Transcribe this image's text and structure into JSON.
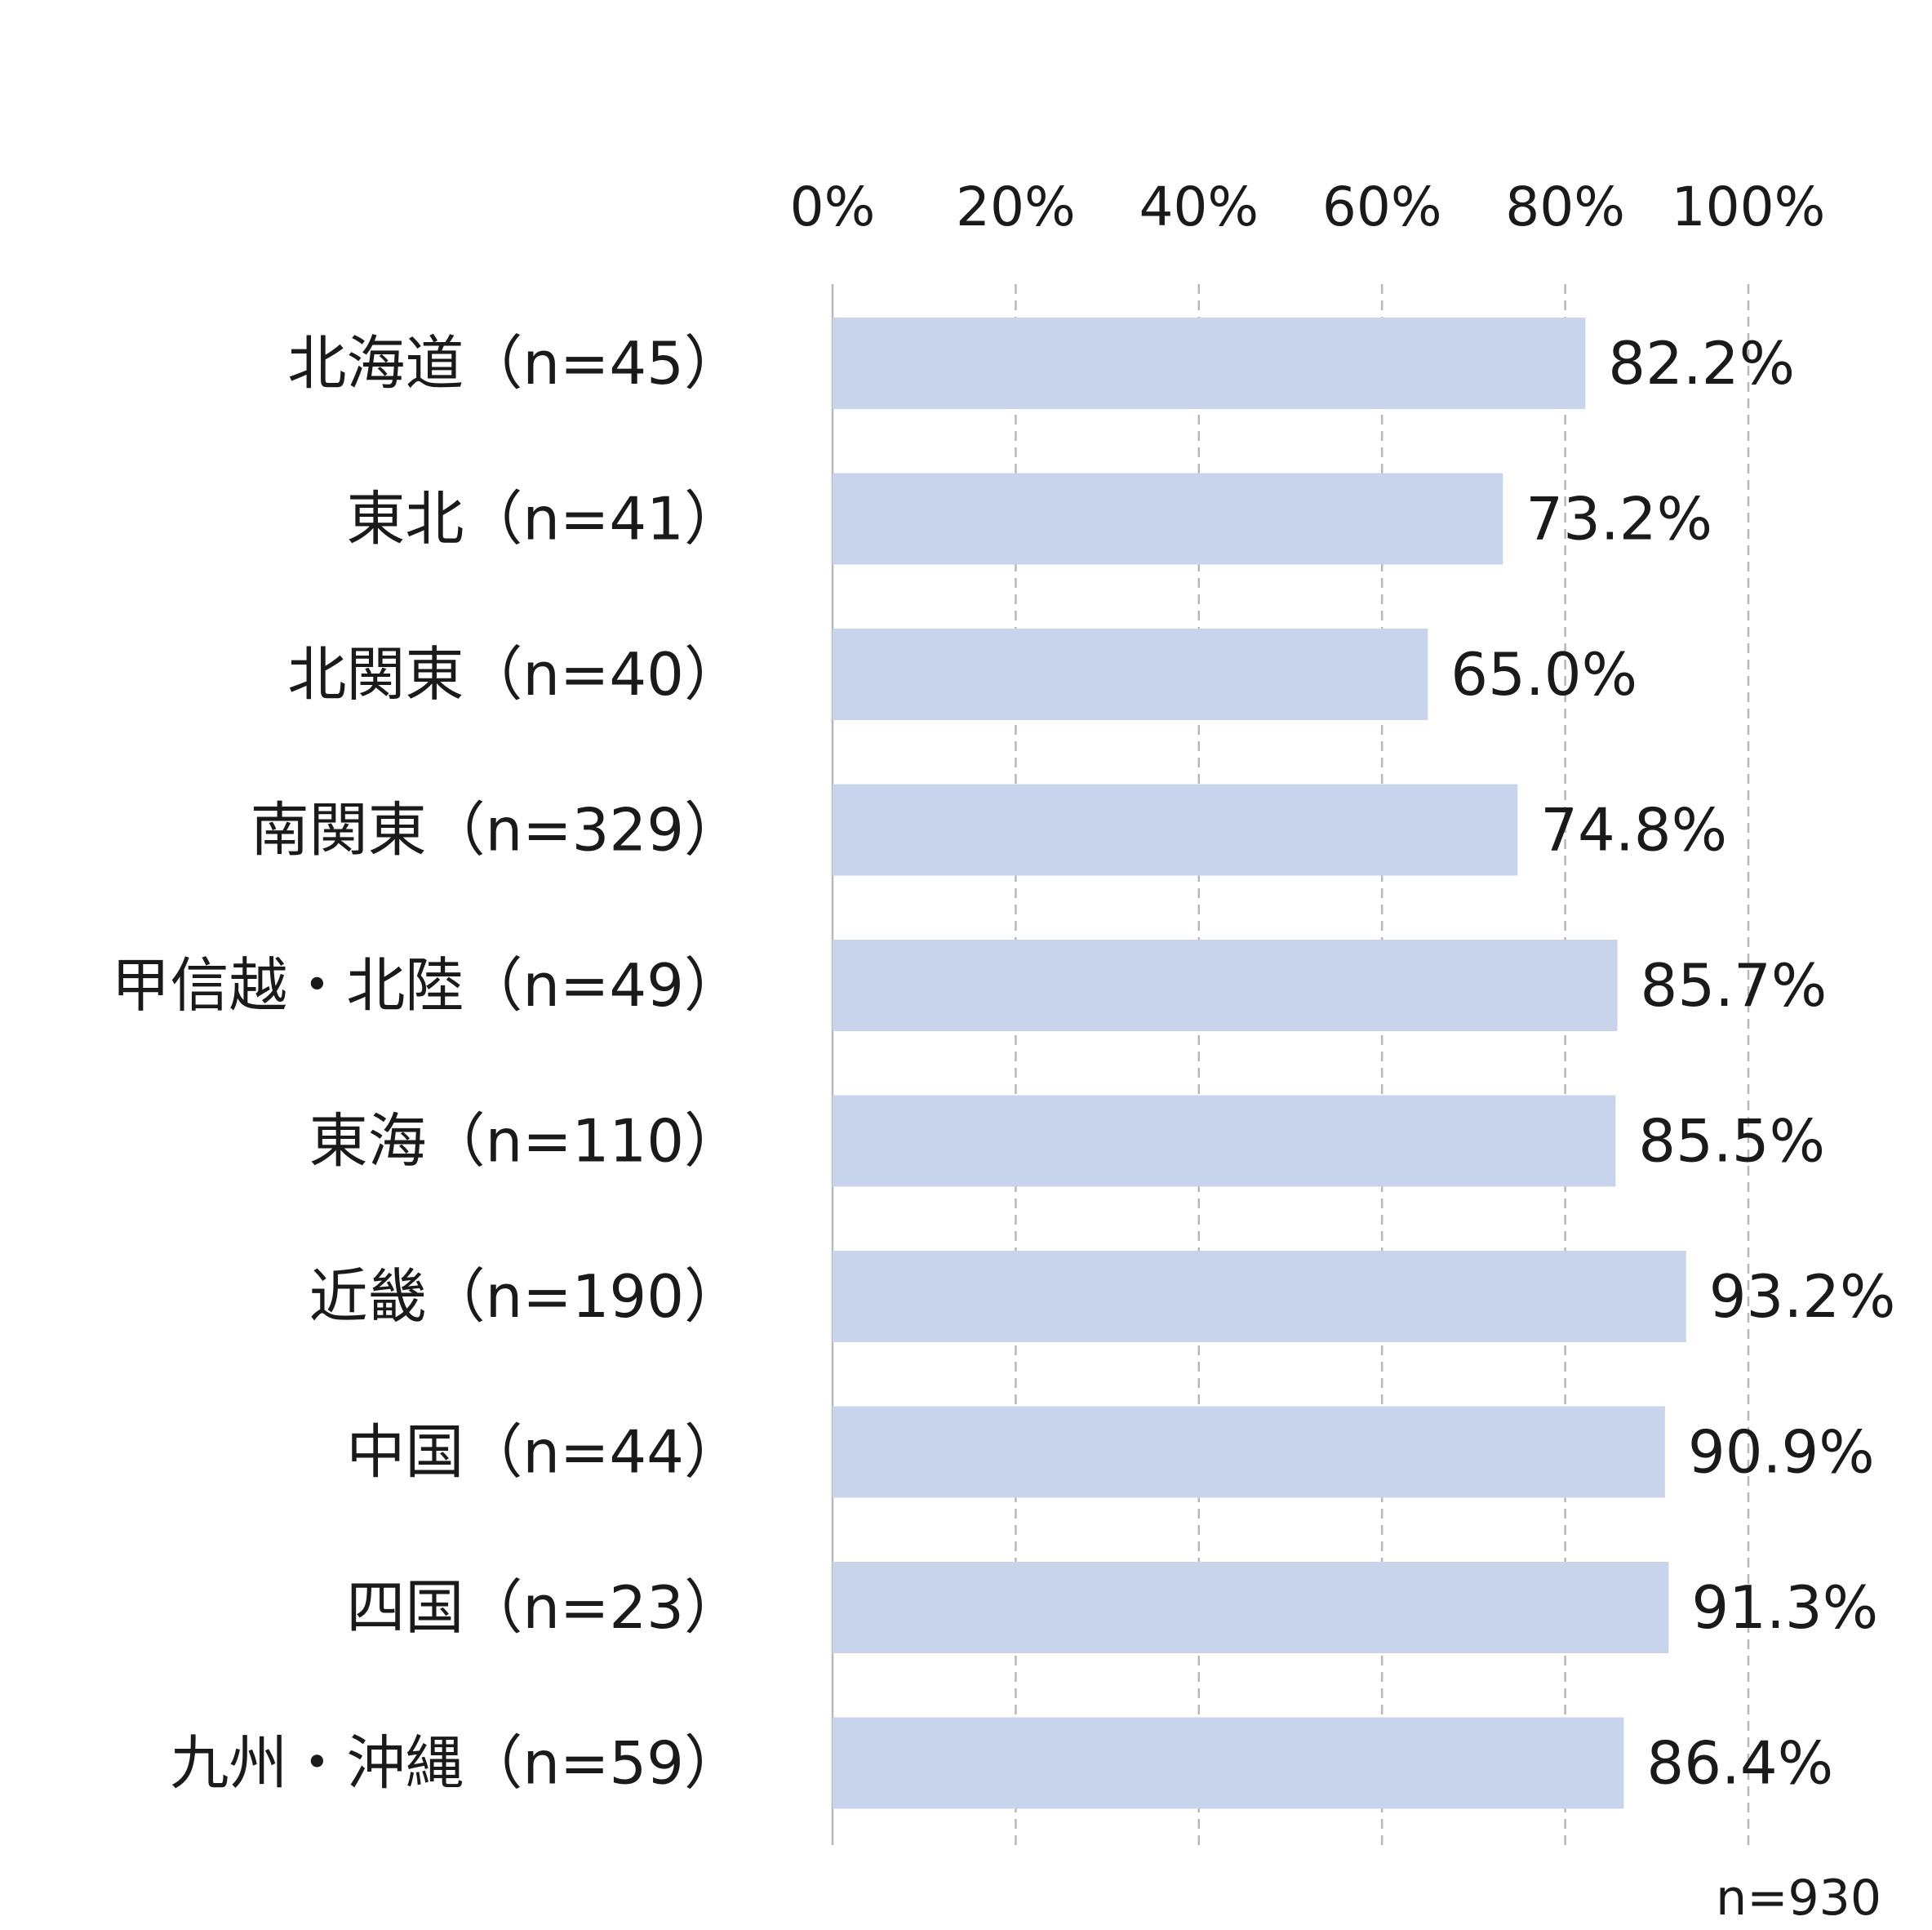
{
  "chart_data": {
    "type": "bar",
    "orientation": "horizontal",
    "categories": [
      "北海道（n=45）",
      "東北（n=41）",
      "北関東（n=40）",
      "南関東（n=329）",
      "甲信越・北陸（n=49）",
      "東海（n=110）",
      "近畿（n=190）",
      "中国（n=44）",
      "四国（n=23）",
      "九州・沖縄（n=59）"
    ],
    "values": [
      82.2,
      73.2,
      65.0,
      74.8,
      85.7,
      85.5,
      93.2,
      90.9,
      91.3,
      86.4
    ],
    "value_labels": [
      "82.2%",
      "73.2%",
      "65.0%",
      "74.8%",
      "85.7%",
      "85.5%",
      "93.2%",
      "90.9%",
      "91.3%",
      "86.4%"
    ],
    "x_ticks": [
      "0%",
      "20%",
      "40%",
      "60%",
      "80%",
      "100%"
    ],
    "xlim": [
      0,
      100
    ],
    "grid": "vertical dashed",
    "axis_position": "top",
    "bar_color": "#c8d4ec",
    "note": "n=930"
  }
}
